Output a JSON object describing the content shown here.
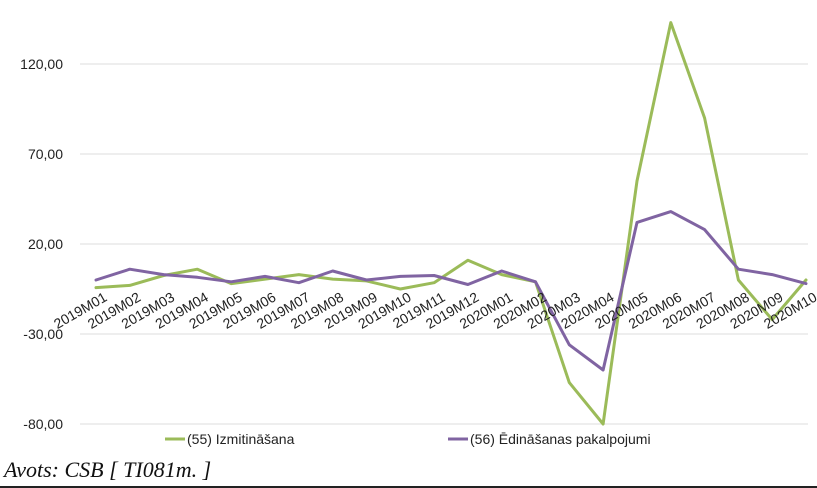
{
  "chart_data": {
    "type": "line",
    "title": "",
    "xlabel": "",
    "ylabel": "",
    "ylim": [
      -80,
      140
    ],
    "yticks": [
      -80,
      -30,
      20,
      70,
      120
    ],
    "ytick_labels": [
      "-80,00",
      "-30,00",
      "20,00",
      "70,00",
      "120,00"
    ],
    "categories": [
      "2019M01",
      "2019M02",
      "2019M03",
      "2019M04",
      "2019M05",
      "2019M06",
      "2019M07",
      "2019M08",
      "2019M09",
      "2019M10",
      "2019M11",
      "2019M12",
      "2020M01",
      "2020M02",
      "2020M03",
      "2020M04",
      "2020M05",
      "2020M06",
      "2020M07",
      "2020M08",
      "2020M09",
      "2020M10"
    ],
    "grid": true,
    "legend_position": "bottom",
    "series": [
      {
        "name": "(55) Izmitināšana",
        "color": "#9bbb59",
        "values": [
          -4.2,
          -3.0,
          2.5,
          6.0,
          -2.0,
          0.5,
          3.0,
          0.5,
          -0.5,
          -5.0,
          -1.5,
          11.0,
          3.0,
          -1.0,
          -57.0,
          -80.0,
          55.0,
          143.0,
          90.0,
          0.0,
          -22.0,
          0.0
        ]
      },
      {
        "name": "(56) Ēdināšanas pakalpojumi",
        "color": "#8064a2",
        "values": [
          0.0,
          6.0,
          3.0,
          1.5,
          -1.0,
          2.0,
          -1.5,
          5.0,
          0.0,
          2.0,
          2.5,
          -2.5,
          5.0,
          -1.0,
          -36.0,
          -50.0,
          32.0,
          38.0,
          28.0,
          6.0,
          3.0,
          -2.0
        ]
      }
    ]
  },
  "source_text": "Avots: CSB [ TI081m. ]"
}
